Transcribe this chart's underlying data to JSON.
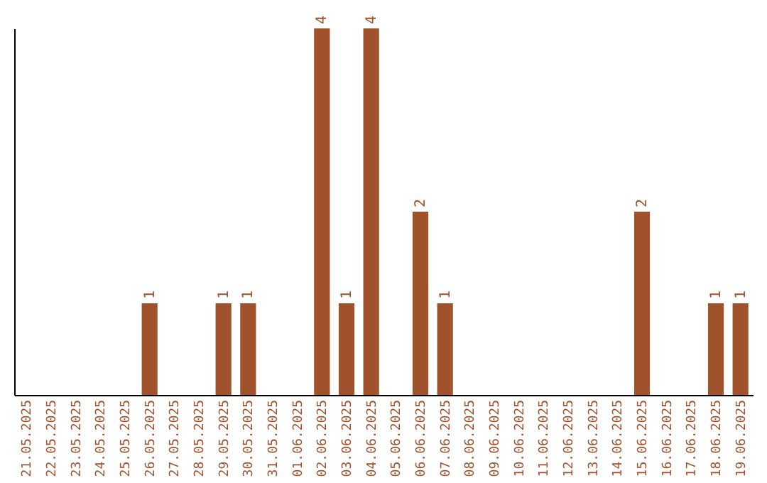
{
  "chart_data": {
    "type": "bar",
    "categories": [
      "21.05.2025",
      "22.05.2025",
      "23.05.2025",
      "24.05.2025",
      "25.05.2025",
      "26.05.2025",
      "27.05.2025",
      "28.05.2025",
      "29.05.2025",
      "30.05.2025",
      "31.05.2025",
      "01.06.2025",
      "02.06.2025",
      "03.06.2025",
      "04.06.2025",
      "05.06.2025",
      "06.06.2025",
      "07.06.2025",
      "08.06.2025",
      "09.06.2025",
      "10.06.2025",
      "11.06.2025",
      "12.06.2025",
      "13.06.2025",
      "14.06.2025",
      "15.06.2025",
      "16.06.2025",
      "17.06.2025",
      "18.06.2025",
      "19.06.2025"
    ],
    "values": [
      0,
      0,
      0,
      0,
      0,
      1,
      0,
      0,
      1,
      1,
      0,
      0,
      4,
      1,
      4,
      0,
      2,
      1,
      0,
      0,
      0,
      0,
      0,
      0,
      0,
      2,
      0,
      0,
      1,
      1
    ],
    "value_labels": [
      null,
      null,
      null,
      null,
      null,
      "1",
      null,
      null,
      "1",
      "1",
      null,
      null,
      "4",
      "1",
      "4",
      null,
      "2",
      "1",
      null,
      null,
      null,
      null,
      null,
      null,
      null,
      "2",
      null,
      null,
      "1",
      "1"
    ],
    "color": "#a0522d",
    "grid": false
  }
}
